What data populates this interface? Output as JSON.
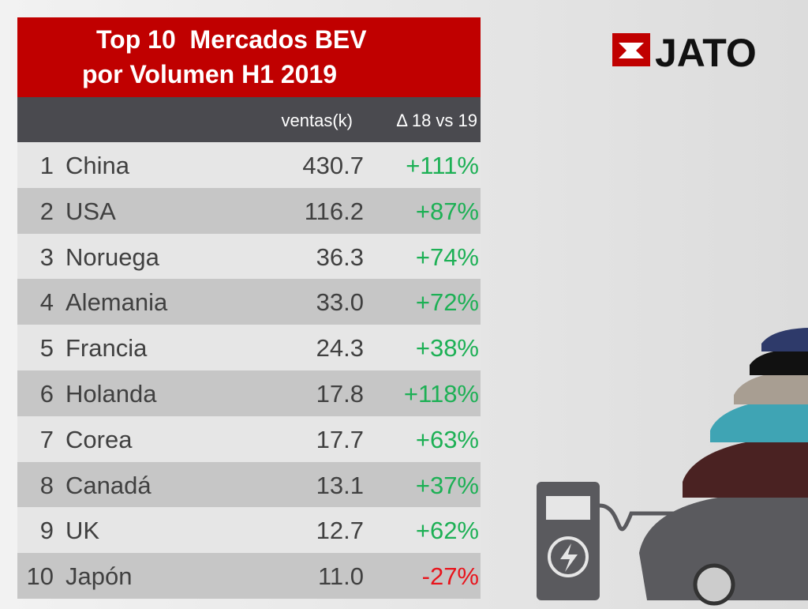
{
  "header": {
    "title": [
      "Top 10  Mercados BEV",
      "por Volumen H1 2019"
    ],
    "logo": "JATO"
  },
  "table": {
    "columns": [
      "ventas(k)",
      "Δ 18 vs 19"
    ],
    "rows": [
      [
        "1",
        "China",
        "430.7",
        "+111%"
      ],
      [
        "2",
        "USA",
        "116.2",
        "+87%"
      ],
      [
        "3",
        "Noruega",
        "36.3",
        "+74%"
      ],
      [
        "4",
        "Alemania",
        "33.0",
        "+72%"
      ],
      [
        "5",
        "Francia",
        "24.3",
        "+38%"
      ],
      [
        "6",
        "Holanda",
        "17.8",
        "+118%"
      ],
      [
        "7",
        "Corea",
        "17.7",
        "+63%"
      ],
      [
        "8",
        "Canadá",
        "13.1",
        "+37%"
      ],
      [
        "9",
        "UK",
        "12.7",
        "+62%"
      ],
      [
        "10",
        "Japón",
        "11.0",
        "-27%"
      ]
    ]
  }
}
